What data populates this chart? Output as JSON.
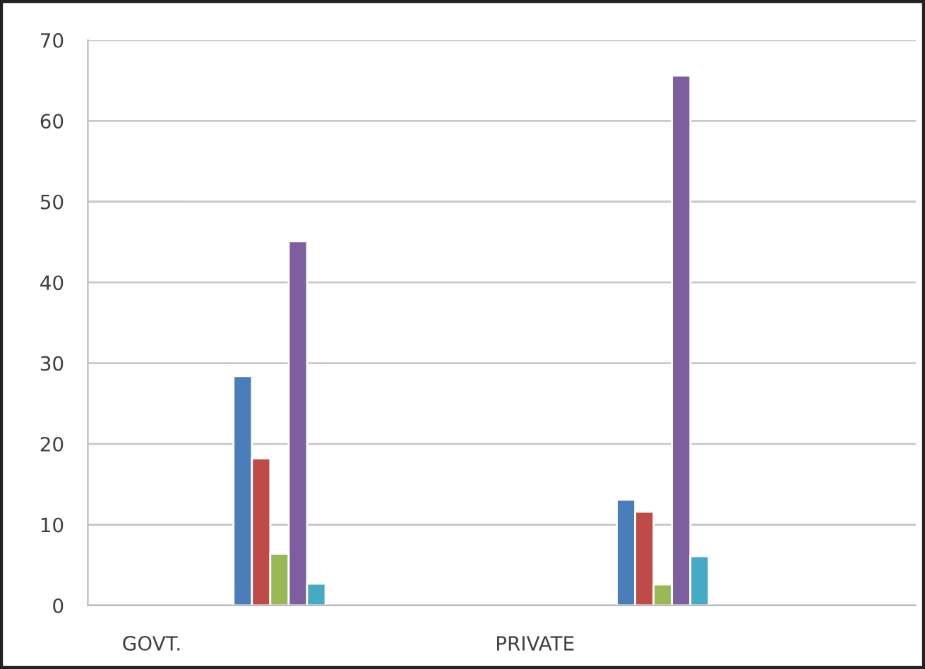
{
  "chart_data": {
    "type": "bar",
    "categories": [
      "GOVT.",
      null,
      null,
      "PRIVATE",
      null,
      null
    ],
    "series": [
      {
        "color": "#4a7ebb",
        "values": [
          null,
          28.4,
          null,
          null,
          13.1,
          null
        ]
      },
      {
        "color": "#be4b48",
        "values": [
          null,
          18.2,
          null,
          null,
          11.6,
          null
        ]
      },
      {
        "color": "#98b954",
        "values": [
          null,
          6.4,
          null,
          null,
          2.6,
          null
        ]
      },
      {
        "color": "#7d5fa0",
        "values": [
          null,
          45.1,
          null,
          null,
          65.6,
          null
        ]
      },
      {
        "color": "#46aac5",
        "values": [
          null,
          2.7,
          null,
          null,
          6.1,
          null
        ]
      }
    ],
    "ylim": [
      0,
      70
    ],
    "yticks": [
      0,
      10,
      20,
      30,
      40,
      50,
      60,
      70
    ],
    "grid": "y",
    "legend": false
  }
}
